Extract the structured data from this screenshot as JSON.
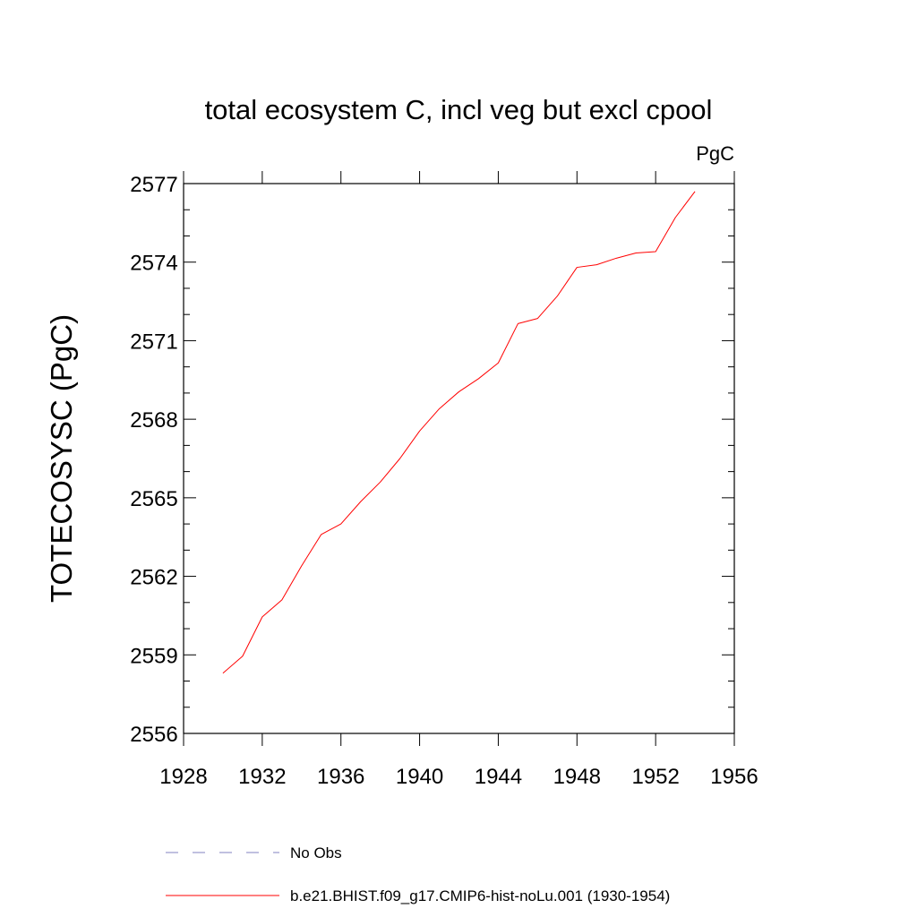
{
  "chart_data": {
    "type": "line",
    "title": "total ecosystem C, incl veg but excl cpool",
    "units": "PgC",
    "xlabel": "",
    "ylabel": "TOTECOSYSC  (PgC)",
    "xlim": [
      1928,
      1956
    ],
    "ylim": [
      2556,
      2577
    ],
    "xticks": [
      1928,
      1932,
      1936,
      1940,
      1944,
      1948,
      1952,
      1956
    ],
    "yticks": [
      2556,
      2559,
      2562,
      2565,
      2568,
      2571,
      2574,
      2577
    ],
    "grid": false,
    "legend_position": "bottom",
    "series": [
      {
        "name": "b.e21.BHIST.f09_g17.CMIP6-hist-noLu.001 (1930-1954)",
        "color": "#ff0000",
        "style": "solid",
        "x": [
          1930,
          1931,
          1932,
          1933,
          1934,
          1935,
          1936,
          1937,
          1938,
          1939,
          1940,
          1941,
          1942,
          1943,
          1944,
          1945,
          1946,
          1947,
          1948,
          1949,
          1950,
          1951,
          1952,
          1953,
          1954
        ],
        "y": [
          2558.3,
          2558.95,
          2560.45,
          2561.1,
          2562.4,
          2563.6,
          2564.0,
          2564.85,
          2565.6,
          2566.5,
          2567.55,
          2568.4,
          2569.05,
          2569.55,
          2570.15,
          2571.65,
          2571.85,
          2572.7,
          2573.8,
          2573.9,
          2574.15,
          2574.35,
          2574.4,
          2575.7,
          2576.7
        ]
      }
    ],
    "legend": [
      {
        "label": "No Obs",
        "color": "#8080c0",
        "style": "dashed"
      },
      {
        "label": "b.e21.BHIST.f09_g17.CMIP6-hist-noLu.001 (1930-1954)",
        "color": "#ff0000",
        "style": "solid"
      }
    ]
  }
}
